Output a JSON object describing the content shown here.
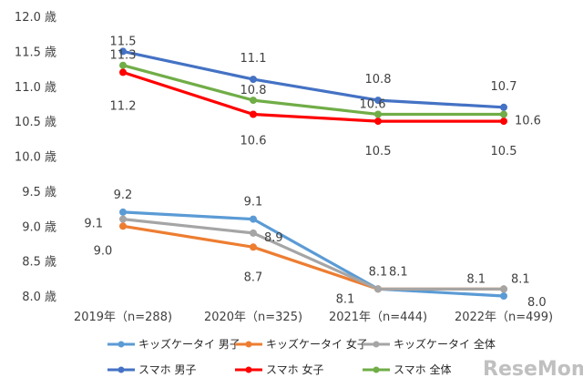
{
  "chart_data": {
    "type": "line",
    "categories": [
      "2019年（n=288)",
      "2020年（n=325)",
      "2021年（n=444)",
      "2022年（n=499)"
    ],
    "y_ticks": [
      "8.0 歳",
      "8.5 歳",
      "9.0 歳",
      "9.5 歳",
      "10.0 歳",
      "10.5 歳",
      "11.0 歳",
      "11.5 歳",
      "12.0 歳"
    ],
    "ylim": [
      8.0,
      12.0
    ],
    "ystep": 0.5,
    "grid": false,
    "legend_position": "bottom",
    "series": [
      {
        "name": "キッズケータイ 男子",
        "color": "#5B9BD5",
        "values": [
          9.2,
          9.1,
          8.1,
          8.0
        ],
        "labels": [
          "9.2",
          "9.1",
          "8.1",
          "8.0"
        ]
      },
      {
        "name": "キッズケータイ 女子",
        "color": "#ED7D31",
        "values": [
          9.0,
          8.7,
          8.1,
          8.1
        ],
        "labels": [
          "9.0",
          "8.7",
          "8.1",
          "8.1"
        ]
      },
      {
        "name": "キッズケータイ 全体",
        "color": "#A5A5A5",
        "values": [
          9.1,
          8.9,
          8.1,
          8.1
        ],
        "labels": [
          "9.1",
          "8.9",
          "8.1",
          "8.1"
        ]
      },
      {
        "name": "スマホ 男子",
        "color": "#4472C4",
        "values": [
          11.5,
          11.1,
          10.8,
          10.7
        ],
        "labels": [
          "11.5",
          "11.1",
          "10.8",
          "10.7"
        ]
      },
      {
        "name": "スマホ 女子",
        "color": "#FF0000",
        "values": [
          11.2,
          10.6,
          10.5,
          10.5
        ],
        "labels": [
          "11.2",
          "10.6",
          "10.5",
          "10.5"
        ]
      },
      {
        "name": "スマホ 全体",
        "color": "#70AD47",
        "values": [
          11.3,
          10.8,
          10.6,
          10.6
        ],
        "labels": [
          "11.3",
          "10.8",
          "10.6",
          "10.6"
        ]
      }
    ]
  },
  "watermark": "ReseMom"
}
